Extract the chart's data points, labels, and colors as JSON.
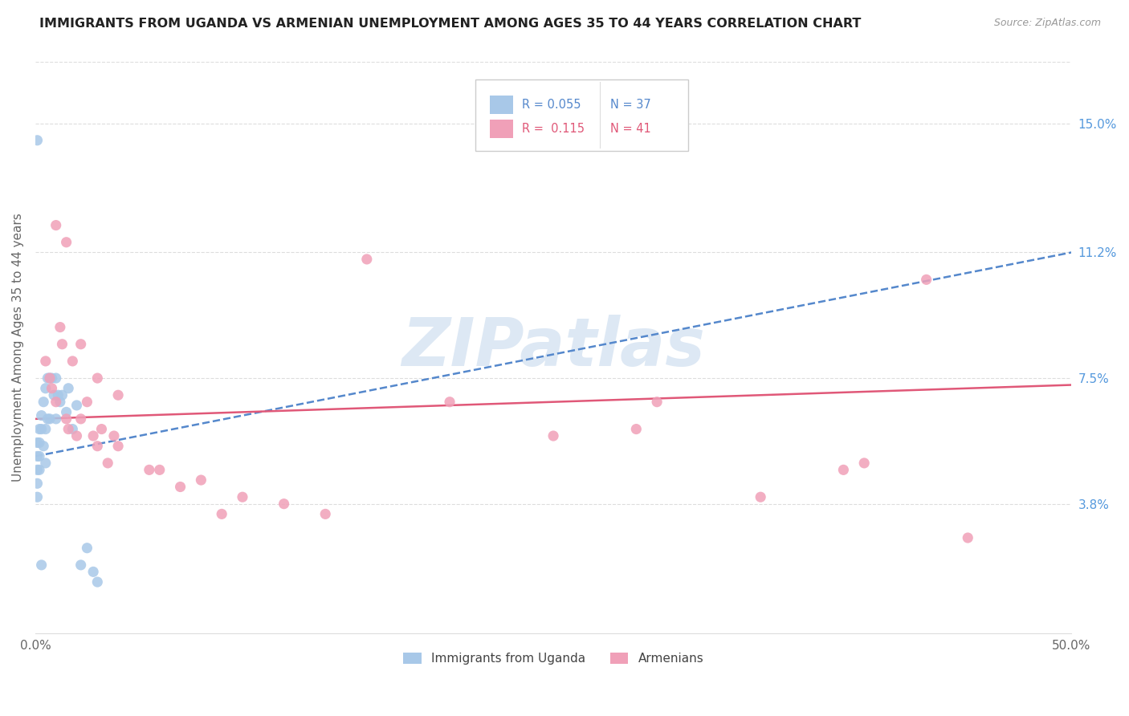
{
  "title": "IMMIGRANTS FROM UGANDA VS ARMENIAN UNEMPLOYMENT AMONG AGES 35 TO 44 YEARS CORRELATION CHART",
  "source": "Source: ZipAtlas.com",
  "ylabel": "Unemployment Among Ages 35 to 44 years",
  "xlim": [
    0.0,
    0.5
  ],
  "ylim": [
    0.0,
    0.168
  ],
  "right_yticks": [
    0.038,
    0.075,
    0.112,
    0.15
  ],
  "right_yticklabels": [
    "3.8%",
    "7.5%",
    "11.2%",
    "15.0%"
  ],
  "color_uganda": "#a8c8e8",
  "color_armenian": "#f0a0b8",
  "color_uganda_line": "#5588cc",
  "color_armenian_line": "#e05878",
  "watermark_text": "ZIPatlas",
  "uganda_x": [
    0.001,
    0.001,
    0.001,
    0.001,
    0.001,
    0.002,
    0.002,
    0.002,
    0.002,
    0.003,
    0.003,
    0.003,
    0.004,
    0.004,
    0.005,
    0.005,
    0.005,
    0.006,
    0.006,
    0.007,
    0.007,
    0.008,
    0.009,
    0.01,
    0.01,
    0.011,
    0.012,
    0.013,
    0.015,
    0.016,
    0.018,
    0.02,
    0.022,
    0.025,
    0.028,
    0.03,
    0.001
  ],
  "uganda_y": [
    0.056,
    0.052,
    0.048,
    0.044,
    0.04,
    0.06,
    0.056,
    0.052,
    0.048,
    0.064,
    0.06,
    0.02,
    0.068,
    0.055,
    0.072,
    0.06,
    0.05,
    0.075,
    0.063,
    0.075,
    0.063,
    0.075,
    0.07,
    0.075,
    0.063,
    0.07,
    0.068,
    0.07,
    0.065,
    0.072,
    0.06,
    0.067,
    0.02,
    0.025,
    0.018,
    0.015,
    0.145
  ],
  "armenian_x": [
    0.005,
    0.007,
    0.008,
    0.01,
    0.012,
    0.013,
    0.015,
    0.016,
    0.018,
    0.02,
    0.022,
    0.025,
    0.028,
    0.03,
    0.032,
    0.035,
    0.038,
    0.04,
    0.055,
    0.07,
    0.08,
    0.1,
    0.12,
    0.14,
    0.16,
    0.2,
    0.25,
    0.3,
    0.35,
    0.4,
    0.43,
    0.45,
    0.01,
    0.015,
    0.022,
    0.03,
    0.04,
    0.06,
    0.09,
    0.29,
    0.39
  ],
  "armenian_y": [
    0.08,
    0.075,
    0.072,
    0.068,
    0.09,
    0.085,
    0.063,
    0.06,
    0.08,
    0.058,
    0.063,
    0.068,
    0.058,
    0.055,
    0.06,
    0.05,
    0.058,
    0.055,
    0.048,
    0.043,
    0.045,
    0.04,
    0.038,
    0.035,
    0.11,
    0.068,
    0.058,
    0.068,
    0.04,
    0.05,
    0.104,
    0.028,
    0.12,
    0.115,
    0.085,
    0.075,
    0.07,
    0.048,
    0.035,
    0.06,
    0.048
  ],
  "uganda_trend_x": [
    0.0,
    0.5
  ],
  "uganda_trend_y": [
    0.052,
    0.112
  ],
  "armenian_trend_x": [
    0.0,
    0.5
  ],
  "armenian_trend_y": [
    0.063,
    0.073
  ]
}
